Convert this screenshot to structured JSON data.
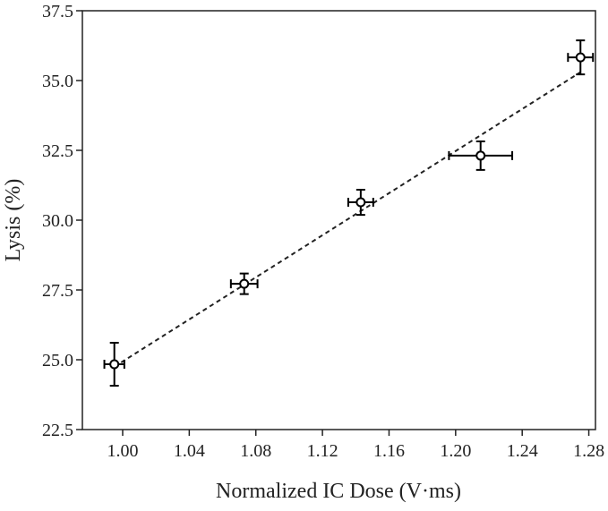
{
  "chart_data": {
    "type": "scatter",
    "x_label": "Normalized IC Dose (V·ms)",
    "y_label": "Lysis (%)",
    "series": [
      {
        "color": "#000000",
        "x": [
          0.995,
          1.073,
          1.143,
          1.215,
          1.275
        ],
        "values": [
          24.84,
          27.72,
          30.64,
          32.31,
          35.83
        ],
        "x_errors": [
          0.006,
          0.008,
          0.0075,
          0.019,
          0.0075
        ],
        "errors": [
          0.77,
          0.37,
          0.45,
          0.51,
          0.61
        ]
      }
    ],
    "fit": {
      "x": [
        0.995,
        1.275
      ],
      "values": [
        24.75,
        35.3
      ]
    },
    "xlim": [
      0.9758,
      1.284
    ],
    "xticks": [
      {
        "value": 1.0,
        "label": "1.00"
      },
      1.04,
      1.08,
      1.12,
      1.16,
      {
        "value": 1.2,
        "label": "1.20"
      },
      1.24,
      1.28
    ],
    "ylim": [
      22.5,
      37.5
    ],
    "yticks": [
      22.5,
      {
        "value": 25,
        "label": "25.0"
      },
      27.5,
      {
        "value": 30,
        "label": "30.0"
      },
      32.5,
      {
        "value": 35,
        "label": "35.0"
      },
      37.5
    ]
  }
}
